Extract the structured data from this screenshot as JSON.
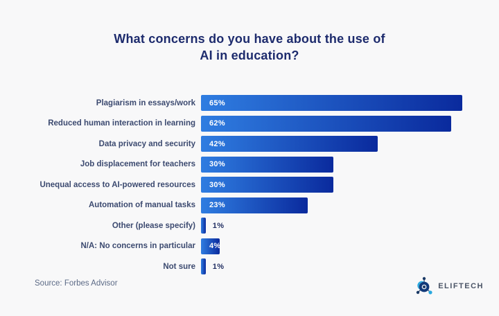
{
  "page": {
    "title_lines": [
      "What concerns do you have about the use of",
      "AI in education?"
    ],
    "source": "Source: Forbes Advisor",
    "logo_text": "ELIFTECH"
  },
  "colors": {
    "background": "#f8f8f9",
    "title": "#1d2b6d",
    "category_label": "#3c4a70",
    "bar_gradient_start": "#2f7de1",
    "bar_gradient_end": "#0a2a9d",
    "value_inside": "#ffffff",
    "value_outside": "#222f63",
    "source_text": "#5c6a86",
    "logo_navy": "#1b3a66",
    "logo_cyan": "#29a8df"
  },
  "chart_data": {
    "type": "bar",
    "orientation": "horizontal",
    "title": "What concerns do you have about the use of AI in education?",
    "categories": [
      "Plagiarism in essays/work",
      "Reduced human interaction in learning",
      "Data privacy and security",
      "Job displacement for teachers",
      "Unequal access to AI-powered resources",
      "Automation of manual tasks",
      "Other (please specify)",
      "N/A: No concerns in particular",
      "Not sure"
    ],
    "values": [
      65,
      62,
      42,
      30,
      30,
      23,
      1,
      4,
      1
    ],
    "value_labels": [
      "65%",
      "62%",
      "42%",
      "30%",
      "30%",
      "23%",
      "1%",
      "4%",
      "1%"
    ],
    "value_suffix": "%",
    "xlim": [
      0,
      70
    ],
    "grid": false,
    "legend": "none",
    "source": "Source: Forbes Advisor"
  }
}
